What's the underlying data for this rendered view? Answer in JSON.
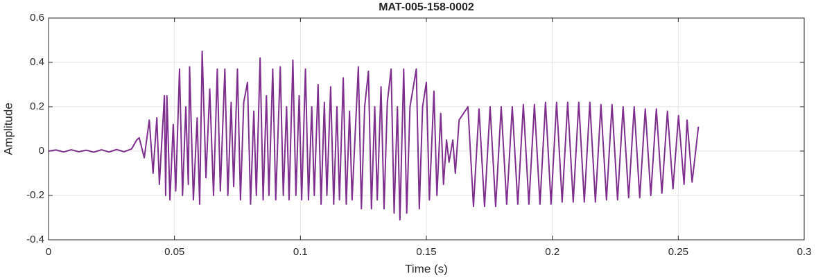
{
  "chart_data": {
    "type": "line",
    "title": "MAT-005-158-0002",
    "x_label": "Time (s)",
    "y_label": "Amplitude",
    "xlim": [
      0,
      0.3
    ],
    "ylim": [
      -0.4,
      0.6
    ],
    "xticks": [
      0,
      0.05,
      0.1,
      0.15,
      0.2,
      0.25,
      0.3
    ],
    "yticks": [
      -0.4,
      -0.2,
      0,
      0.2,
      0.4,
      0.6
    ],
    "grid": true,
    "series": [
      {
        "color": "#7e2f8e",
        "x": [
          0,
          0.003,
          0.006,
          0.009,
          0.012,
          0.015,
          0.018,
          0.021,
          0.024,
          0.027,
          0.03,
          0.033,
          0.035,
          0.036,
          0.038,
          0.04,
          0.0415,
          0.043,
          0.044,
          0.046,
          0.0465,
          0.047,
          0.0482,
          0.0495,
          0.0505,
          0.052,
          0.0532,
          0.0545,
          0.0555,
          0.056,
          0.0575,
          0.059,
          0.06,
          0.061,
          0.0625,
          0.064,
          0.0655,
          0.067,
          0.0682,
          0.07,
          0.0712,
          0.0725,
          0.0735,
          0.075,
          0.0762,
          0.0775,
          0.079,
          0.0802,
          0.0815,
          0.0825,
          0.084,
          0.0852,
          0.0865,
          0.0875,
          0.089,
          0.0902,
          0.092,
          0.0932,
          0.0945,
          0.0955,
          0.097,
          0.0982,
          0.0995,
          0.1005,
          0.102,
          0.1032,
          0.1045,
          0.1055,
          0.107,
          0.1082,
          0.1095,
          0.1105,
          0.112,
          0.1132,
          0.1145,
          0.1155,
          0.117,
          0.1182,
          0.1195,
          0.1205,
          0.123,
          0.1242,
          0.1255,
          0.127,
          0.1282,
          0.1295,
          0.1305,
          0.132,
          0.1332,
          0.1345,
          0.136,
          0.1372,
          0.1385,
          0.1395,
          0.141,
          0.1422,
          0.1435,
          0.146,
          0.1472,
          0.1485,
          0.15,
          0.1512,
          0.153,
          0.1542,
          0.1557,
          0.1568,
          0.158,
          0.159,
          0.1605,
          0.1615,
          0.163,
          0.1665,
          0.1687,
          0.1709,
          0.1731,
          0.1753,
          0.1775,
          0.1797,
          0.1819,
          0.1841,
          0.1863,
          0.1885,
          0.1907,
          0.1929,
          0.1951,
          0.1973,
          0.1995,
          0.2017,
          0.2039,
          0.2061,
          0.2083,
          0.2105,
          0.2127,
          0.2149,
          0.2171,
          0.2193,
          0.2215,
          0.2237,
          0.2259,
          0.2281,
          0.2303,
          0.2325,
          0.2347,
          0.2369,
          0.2391,
          0.2413,
          0.2435,
          0.2457,
          0.2479,
          0.2501,
          0.2523,
          0.2535,
          0.2555,
          0.258
        ],
        "values": [
          0,
          0.005,
          -0.004,
          0.006,
          -0.003,
          0.004,
          -0.005,
          0.006,
          -0.004,
          0.007,
          -0.003,
          0.01,
          0.05,
          0.06,
          -0.03,
          0.14,
          -0.1,
          0.15,
          -0.15,
          0.25,
          -0.2,
          0.25,
          -0.22,
          0.12,
          -0.18,
          0.37,
          -0.2,
          0.2,
          -0.15,
          0.38,
          -0.22,
          0.15,
          -0.24,
          0.45,
          -0.12,
          0.28,
          -0.2,
          0.37,
          -0.18,
          0.37,
          -0.2,
          0.22,
          -0.16,
          0.37,
          -0.22,
          0.22,
          0.31,
          -0.24,
          0.18,
          -0.2,
          0.42,
          -0.22,
          0.25,
          -0.2,
          0.37,
          -0.22,
          0.38,
          -0.2,
          0.2,
          -0.22,
          0.41,
          -0.2,
          0.25,
          -0.22,
          0.37,
          -0.22,
          0.2,
          -0.2,
          0.3,
          -0.24,
          0.22,
          -0.2,
          0.29,
          -0.24,
          0.2,
          -0.22,
          0.33,
          -0.24,
          0.18,
          -0.22,
          0.38,
          -0.26,
          0.2,
          0.36,
          -0.26,
          0.2,
          -0.22,
          0.29,
          -0.26,
          0.22,
          0.37,
          -0.28,
          0.2,
          -0.31,
          0.37,
          -0.28,
          0.2,
          0.37,
          -0.26,
          0.2,
          0.31,
          -0.22,
          0.27,
          -0.2,
          0.17,
          -0.15,
          0.05,
          -0.05,
          0.05,
          -0.1,
          0.14,
          0.2,
          -0.25,
          0.19,
          -0.25,
          0.2,
          -0.25,
          0.2,
          -0.24,
          0.2,
          -0.24,
          0.21,
          -0.24,
          0.21,
          -0.24,
          0.22,
          -0.24,
          0.22,
          -0.23,
          0.22,
          -0.23,
          0.22,
          -0.23,
          0.22,
          -0.23,
          0.21,
          -0.22,
          0.21,
          -0.22,
          0.2,
          -0.21,
          0.2,
          -0.21,
          0.19,
          -0.2,
          0.19,
          -0.19,
          0.18,
          -0.17,
          0.16,
          -0.15,
          0.14,
          -0.14,
          0.11
        ]
      }
    ]
  }
}
